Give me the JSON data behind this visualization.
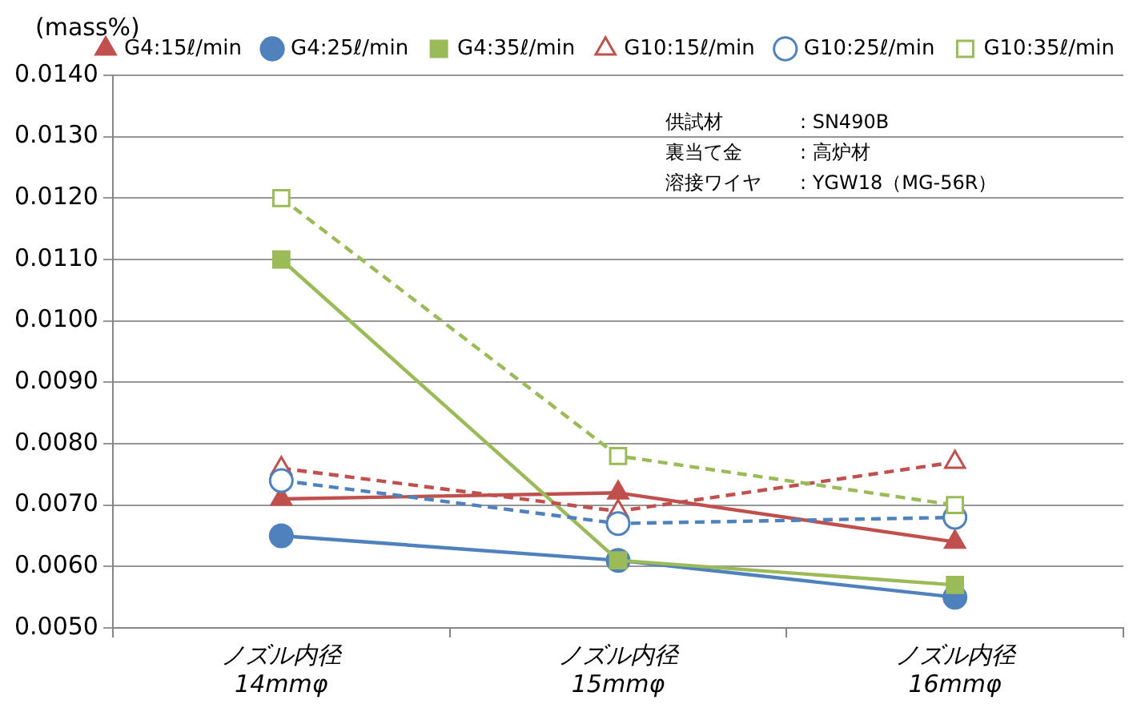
{
  "chart_data": {
    "type": "line",
    "ylabel": "(mass%)",
    "categories": [
      "ノズル内径\n14mmφ",
      "ノズル内径\n15mmφ",
      "ノズル内径\n16mmφ"
    ],
    "series": [
      {
        "name": "G4:15ℓ/min",
        "color": "#c0504d",
        "marker": "triangle",
        "line_style": "solid",
        "values": [
          0.0071,
          0.0072,
          0.0064
        ]
      },
      {
        "name": "G4:25ℓ/min",
        "color": "#4f81bd",
        "marker": "circle",
        "line_style": "solid",
        "values": [
          0.0065,
          0.0061,
          0.0055
        ]
      },
      {
        "name": "G4:35ℓ/min",
        "color": "#9bbb59",
        "marker": "square",
        "line_style": "solid",
        "values": [
          0.011,
          0.0061,
          0.0057
        ]
      },
      {
        "name": "G10:15ℓ/min",
        "color": "#c0504d",
        "marker": "triangle",
        "line_style": "dashed",
        "values": [
          0.0076,
          0.0069,
          0.0077
        ]
      },
      {
        "name": "G10:25ℓ/min",
        "color": "#4f81bd",
        "marker": "circle",
        "line_style": "dashed",
        "values": [
          0.0074,
          0.0067,
          0.0068
        ]
      },
      {
        "name": "G10:35ℓ/min",
        "color": "#9bbb59",
        "marker": "square",
        "line_style": "dashed",
        "values": [
          0.012,
          0.0078,
          0.007
        ]
      }
    ],
    "ylim": [
      0.005,
      0.014
    ],
    "yticks": [
      {
        "value": 0.005,
        "label": "0.0050"
      },
      {
        "value": 0.006,
        "label": "0.0060"
      },
      {
        "value": 0.007,
        "label": "0.0070"
      },
      {
        "value": 0.008,
        "label": "0.0080"
      },
      {
        "value": 0.009,
        "label": "0.0090"
      },
      {
        "value": 0.01,
        "label": "0.0100"
      },
      {
        "value": 0.011,
        "label": "0.0110"
      },
      {
        "value": 0.012,
        "label": "0.0120"
      },
      {
        "value": 0.013,
        "label": "0.0130"
      },
      {
        "value": 0.014,
        "label": "0.0140"
      }
    ],
    "grid": "y",
    "legend": "top",
    "annotations": [
      "供試材　　　　: SN490B",
      "裏当て金　　　: 高炉材",
      "溶接ワイヤ　　: YGW18（MG-56R）"
    ]
  }
}
